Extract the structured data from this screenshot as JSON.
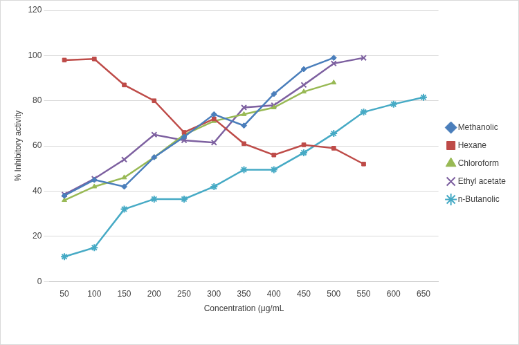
{
  "chart_data": {
    "type": "line",
    "x_label": "Concentration (μg/mL",
    "y_label": "% Inhibitory activity",
    "categories": [
      50,
      100,
      150,
      200,
      250,
      300,
      350,
      400,
      450,
      500,
      550,
      600,
      650
    ],
    "series": [
      {
        "name": "Methanolic",
        "color": "#4a7ebb",
        "marker": "diamond",
        "values": [
          38,
          45,
          42,
          55,
          64,
          74,
          69,
          83,
          94,
          99,
          null,
          null,
          null
        ]
      },
      {
        "name": "Hexane",
        "color": "#be4b48",
        "marker": "square",
        "values": [
          98,
          98.5,
          87,
          80,
          66,
          72,
          61,
          56,
          60.5,
          59,
          52,
          null,
          null
        ]
      },
      {
        "name": "Chloroform",
        "color": "#98b954",
        "marker": "triangle",
        "values": [
          36,
          42,
          46,
          55,
          65,
          71,
          74,
          77,
          84,
          88,
          null,
          null,
          null
        ]
      },
      {
        "name": "Ethyl acetate",
        "color": "#7d60a0",
        "marker": "x",
        "values": [
          38.5,
          45.5,
          54,
          65,
          62.5,
          61.5,
          77,
          78,
          87,
          96.5,
          99,
          null,
          null
        ]
      },
      {
        "name": "n-Butanolic",
        "color": "#46aac5",
        "marker": "star",
        "values": [
          11,
          15,
          32,
          36.5,
          36.5,
          42,
          49.5,
          49.5,
          57,
          65.5,
          75,
          78.5,
          81.5
        ]
      }
    ],
    "ylim": [
      0,
      120
    ],
    "yticks": [
      0,
      20,
      40,
      60,
      80,
      100,
      120
    ],
    "grid": true,
    "legend": "right"
  }
}
